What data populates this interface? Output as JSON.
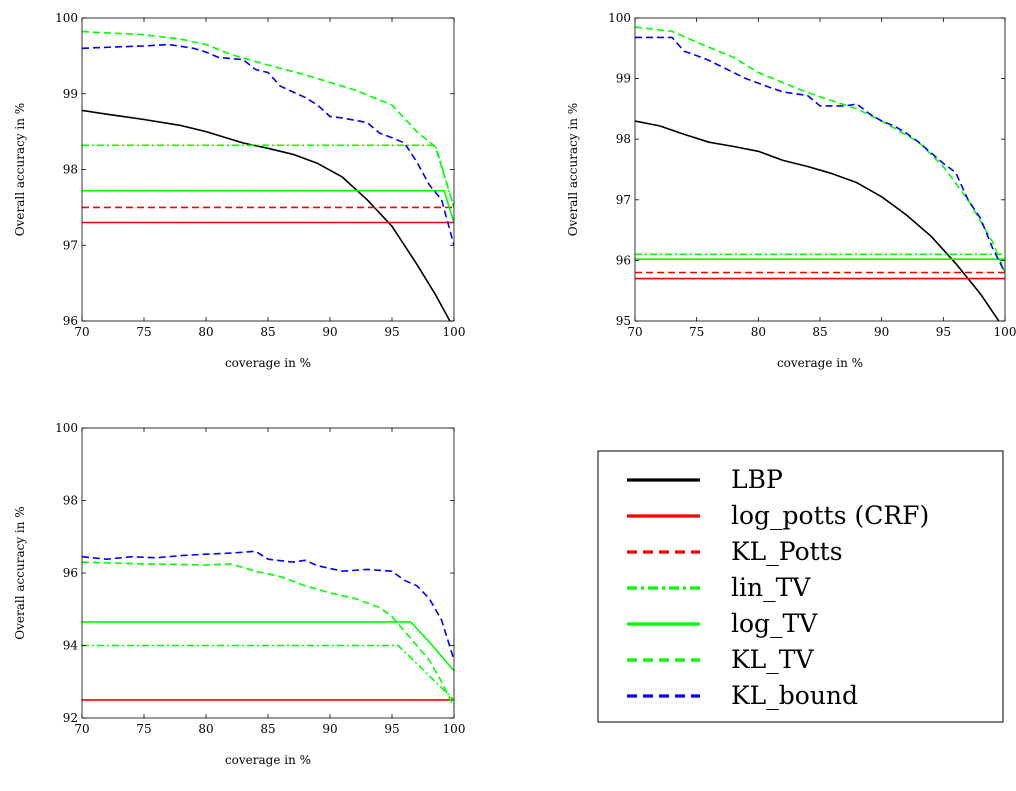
{
  "legend": {
    "entries": [
      {
        "label": "LBP",
        "color": "#000000",
        "dash": "solid",
        "width": 2.2
      },
      {
        "label": "log_potts (CRF)",
        "color": "#ff0000",
        "dash": "solid",
        "width": 2.2
      },
      {
        "label": "KL_Potts",
        "color": "#ff0000",
        "dash": "dashed",
        "width": 2.2
      },
      {
        "label": "lin_TV",
        "color": "#00ff00",
        "dash": "dashdot",
        "width": 2.2
      },
      {
        "label": "log_TV",
        "color": "#00ff00",
        "dash": "solid",
        "width": 2.2
      },
      {
        "label": "KL_TV",
        "color": "#00ff00",
        "dash": "dashed",
        "width": 2.2
      },
      {
        "label": "KL_bound",
        "color": "#0000ff",
        "dash": "dashed",
        "width": 2.2
      }
    ]
  },
  "chart_data": [
    {
      "type": "line",
      "xlabel": "coverage in %",
      "ylabel": "Overall accuracy in %",
      "xlim": [
        70,
        100
      ],
      "ylim": [
        96,
        100
      ],
      "xticks": [
        70,
        75,
        80,
        85,
        90,
        95,
        100
      ],
      "yticks": [
        96,
        97,
        98,
        99,
        100
      ],
      "series": [
        {
          "name": "LBP",
          "color": "#000000",
          "dash": "solid",
          "width": 1.6,
          "x": [
            70,
            72,
            75,
            78,
            80,
            83,
            85,
            87,
            89,
            91,
            93,
            95,
            97,
            98.5,
            100
          ],
          "y": [
            98.78,
            98.73,
            98.66,
            98.58,
            98.5,
            98.35,
            98.28,
            98.2,
            98.08,
            97.9,
            97.6,
            97.25,
            96.75,
            96.35,
            95.9
          ]
        },
        {
          "name": "log_potts (CRF)",
          "color": "#ff0000",
          "dash": "solid",
          "width": 1.6,
          "x": [
            70,
            100
          ],
          "y": [
            97.3,
            97.3
          ]
        },
        {
          "name": "KL_Potts",
          "color": "#ff0000",
          "dash": "dashed",
          "width": 1.6,
          "x": [
            70,
            100
          ],
          "y": [
            97.5,
            97.5
          ]
        },
        {
          "name": "lin_TV",
          "color": "#00ff00",
          "dash": "dashdot",
          "width": 1.6,
          "x": [
            70,
            98.5,
            100
          ],
          "y": [
            98.32,
            98.32,
            97.5
          ]
        },
        {
          "name": "log_TV",
          "color": "#00ff00",
          "dash": "solid",
          "width": 1.6,
          "x": [
            70,
            99.2,
            100
          ],
          "y": [
            97.72,
            97.72,
            97.3
          ]
        },
        {
          "name": "KL_TV",
          "color": "#00ff00",
          "dash": "dashed",
          "width": 1.6,
          "x": [
            70,
            75,
            78,
            80,
            82,
            85,
            88,
            92,
            95,
            97,
            98.5,
            100
          ],
          "y": [
            99.82,
            99.78,
            99.72,
            99.65,
            99.52,
            99.38,
            99.25,
            99.05,
            98.85,
            98.5,
            98.3,
            97.5
          ]
        },
        {
          "name": "KL_bound",
          "color": "#0000ff",
          "dash": "dashed",
          "width": 1.6,
          "x": [
            70,
            73,
            75,
            77,
            79,
            80,
            81,
            83,
            84,
            85,
            86,
            88,
            89,
            90,
            91,
            92,
            93,
            94,
            95,
            96,
            97,
            98,
            99,
            100
          ],
          "y": [
            99.6,
            99.62,
            99.63,
            99.65,
            99.6,
            99.55,
            99.48,
            99.45,
            99.32,
            99.28,
            99.1,
            98.95,
            98.85,
            98.7,
            98.68,
            98.65,
            98.62,
            98.48,
            98.42,
            98.35,
            98.1,
            97.8,
            97.6,
            97.0
          ]
        }
      ]
    },
    {
      "type": "line",
      "xlabel": "coverage in %",
      "ylabel": "Overall accuracy in %",
      "xlim": [
        70,
        100
      ],
      "ylim": [
        95,
        100
      ],
      "xticks": [
        70,
        75,
        80,
        85,
        90,
        95,
        100
      ],
      "yticks": [
        95,
        96,
        97,
        98,
        99,
        100
      ],
      "series": [
        {
          "name": "LBP",
          "color": "#000000",
          "dash": "solid",
          "width": 1.6,
          "x": [
            70,
            72,
            74,
            76,
            78,
            80,
            82,
            84,
            86,
            88,
            90,
            92,
            94,
            96,
            98,
            99.5
          ],
          "y": [
            98.3,
            98.22,
            98.08,
            97.95,
            97.88,
            97.8,
            97.65,
            97.55,
            97.43,
            97.28,
            97.05,
            96.75,
            96.4,
            95.95,
            95.45,
            95.0
          ]
        },
        {
          "name": "log_potts (CRF)",
          "color": "#ff0000",
          "dash": "solid",
          "width": 1.6,
          "x": [
            70,
            100
          ],
          "y": [
            95.7,
            95.7
          ]
        },
        {
          "name": "KL_Potts",
          "color": "#ff0000",
          "dash": "dashed",
          "width": 1.6,
          "x": [
            70,
            100
          ],
          "y": [
            95.8,
            95.8
          ]
        },
        {
          "name": "lin_TV",
          "color": "#00ff00",
          "dash": "dashdot",
          "width": 1.6,
          "x": [
            70,
            100
          ],
          "y": [
            96.1,
            96.1
          ]
        },
        {
          "name": "log_TV",
          "color": "#00ff00",
          "dash": "solid",
          "width": 1.6,
          "x": [
            70,
            100
          ],
          "y": [
            96.02,
            96.02
          ]
        },
        {
          "name": "KL_TV",
          "color": "#00ff00",
          "dash": "dashed",
          "width": 1.6,
          "x": [
            70,
            73,
            75,
            78,
            80,
            83,
            85,
            88,
            90,
            93,
            95,
            97,
            99,
            100
          ],
          "y": [
            99.85,
            99.78,
            99.6,
            99.35,
            99.1,
            98.85,
            98.7,
            98.5,
            98.3,
            97.95,
            97.55,
            97.0,
            96.3,
            95.8
          ]
        },
        {
          "name": "KL_bound",
          "color": "#0000ff",
          "dash": "dashed",
          "width": 1.6,
          "x": [
            70,
            73,
            74,
            75,
            76,
            77,
            79,
            81,
            82,
            84,
            85,
            87,
            88,
            89,
            90,
            91,
            92,
            93,
            95,
            96,
            97,
            98,
            99,
            100
          ],
          "y": [
            99.68,
            99.68,
            99.45,
            99.38,
            99.3,
            99.2,
            99.0,
            98.85,
            98.78,
            98.72,
            98.55,
            98.55,
            98.58,
            98.42,
            98.3,
            98.22,
            98.1,
            97.95,
            97.6,
            97.45,
            97.0,
            96.7,
            96.2,
            95.8
          ]
        }
      ]
    },
    {
      "type": "line",
      "xlabel": "coverage in %",
      "ylabel": "Overall accuracy in %",
      "xlim": [
        70,
        100
      ],
      "ylim": [
        92,
        100
      ],
      "xticks": [
        70,
        75,
        80,
        85,
        90,
        95,
        100
      ],
      "yticks": [
        92,
        94,
        96,
        98,
        100
      ],
      "series": [
        {
          "name": "log_potts (CRF)",
          "color": "#ff0000",
          "dash": "solid",
          "width": 1.6,
          "x": [
            70,
            100
          ],
          "y": [
            92.5,
            92.5
          ]
        },
        {
          "name": "lin_TV",
          "color": "#00ff00",
          "dash": "dashdot",
          "width": 1.6,
          "x": [
            70,
            95.5,
            97,
            98.5,
            100
          ],
          "y": [
            94.0,
            94.0,
            93.5,
            93.0,
            92.5
          ]
        },
        {
          "name": "log_TV",
          "color": "#00ff00",
          "dash": "solid",
          "width": 1.6,
          "x": [
            70,
            96.5,
            98,
            99,
            100
          ],
          "y": [
            94.65,
            94.65,
            94.1,
            93.7,
            93.3
          ]
        },
        {
          "name": "KL_TV",
          "color": "#00ff00",
          "dash": "dashed",
          "width": 1.6,
          "x": [
            70,
            75,
            80,
            82,
            84,
            86,
            88,
            90,
            92,
            94,
            95,
            96,
            97,
            98,
            99,
            100
          ],
          "y": [
            96.3,
            96.25,
            96.22,
            96.25,
            96.05,
            95.9,
            95.65,
            95.45,
            95.3,
            95.05,
            94.8,
            94.4,
            94.0,
            93.6,
            93.0,
            92.3
          ]
        },
        {
          "name": "KL_bound",
          "color": "#0000ff",
          "dash": "dashed",
          "width": 1.6,
          "x": [
            70,
            72,
            74,
            76,
            78,
            80,
            82,
            84,
            85,
            87,
            88,
            89,
            91,
            93,
            95,
            96,
            97,
            98,
            99,
            100
          ],
          "y": [
            96.45,
            96.38,
            96.45,
            96.42,
            96.48,
            96.52,
            96.55,
            96.6,
            96.38,
            96.3,
            96.35,
            96.2,
            96.05,
            96.1,
            96.05,
            95.8,
            95.65,
            95.3,
            94.7,
            93.6
          ]
        }
      ]
    }
  ]
}
